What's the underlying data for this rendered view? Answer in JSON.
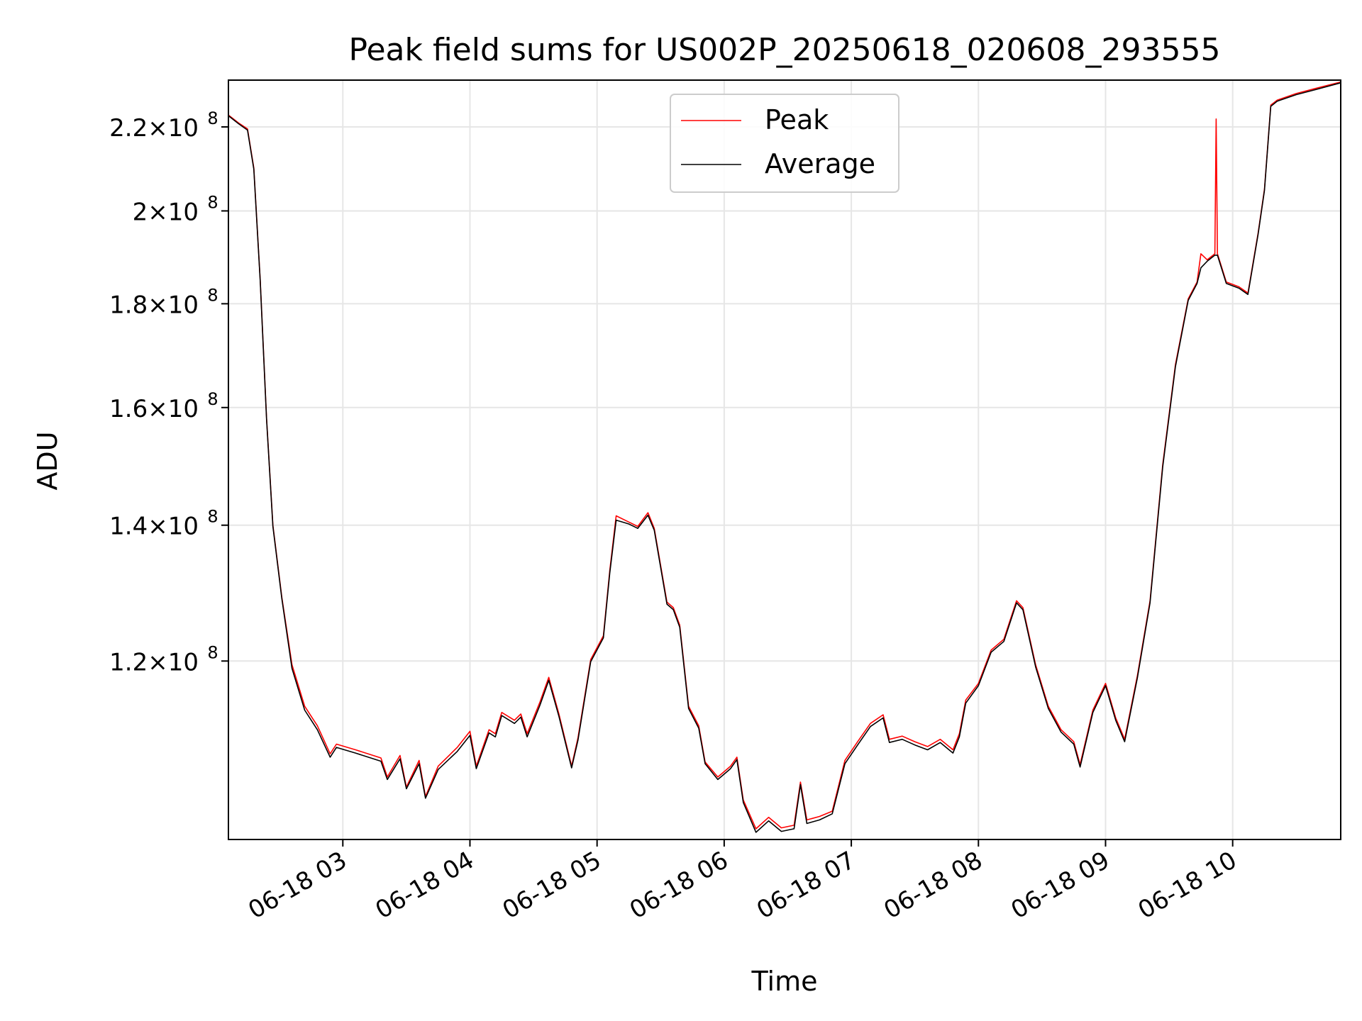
{
  "chart_data": {
    "type": "line",
    "title": "Peak field sums for US002P_20250618_020608_293555",
    "xlabel": "Time",
    "ylabel": "ADU",
    "y_scale": "log",
    "grid": true,
    "legend_placement": "upper-center",
    "x_ticks": [
      {
        "label": "06-18 03",
        "hour": 3
      },
      {
        "label": "06-18 04",
        "hour": 4
      },
      {
        "label": "06-18 05",
        "hour": 5
      },
      {
        "label": "06-18 06",
        "hour": 6
      },
      {
        "label": "06-18 07",
        "hour": 7
      },
      {
        "label": "06-18 08",
        "hour": 8
      },
      {
        "label": "06-18 09",
        "hour": 9
      },
      {
        "label": "06-18 10",
        "hour": 10
      }
    ],
    "x_range_hours": [
      2.1,
      10.85
    ],
    "y_ticks": [
      {
        "value": 120000000,
        "mantissa": "1.2",
        "base": "10",
        "exp": "8"
      },
      {
        "value": 140000000,
        "mantissa": "1.4",
        "base": "10",
        "exp": "8"
      },
      {
        "value": 160000000,
        "mantissa": "1.6",
        "base": "10",
        "exp": "8"
      },
      {
        "value": 180000000,
        "mantissa": "1.8",
        "base": "10",
        "exp": "8"
      },
      {
        "value": 200000000,
        "mantissa": "2",
        "base": "10",
        "exp": "8"
      },
      {
        "value": 220000000,
        "mantissa": "2.2",
        "base": "10",
        "exp": "8"
      }
    ],
    "times_symbol": "×",
    "ylim": [
      98000000,
      232000000
    ],
    "series": [
      {
        "name": "Peak",
        "color": "#ff0000",
        "points": [
          [
            2.1,
            223000000
          ],
          [
            2.18,
            221000000
          ],
          [
            2.25,
            219500000
          ],
          [
            2.3,
            210000000
          ],
          [
            2.35,
            185000000
          ],
          [
            2.4,
            158000000
          ],
          [
            2.45,
            140000000
          ],
          [
            2.52,
            129000000
          ],
          [
            2.6,
            119500000
          ],
          [
            2.7,
            114000000
          ],
          [
            2.8,
            111500000
          ],
          [
            2.9,
            108000000
          ],
          [
            2.95,
            109200000
          ],
          [
            3.1,
            108500000
          ],
          [
            3.3,
            107500000
          ],
          [
            3.35,
            105200000
          ],
          [
            3.45,
            107800000
          ],
          [
            3.5,
            104000000
          ],
          [
            3.6,
            107200000
          ],
          [
            3.65,
            102900000
          ],
          [
            3.75,
            106500000
          ],
          [
            3.9,
            108800000
          ],
          [
            4.0,
            110800000
          ],
          [
            4.05,
            106500000
          ],
          [
            4.15,
            111000000
          ],
          [
            4.2,
            110500000
          ],
          [
            4.25,
            113200000
          ],
          [
            4.35,
            112200000
          ],
          [
            4.4,
            113000000
          ],
          [
            4.45,
            110500000
          ],
          [
            4.55,
            114500000
          ],
          [
            4.62,
            117800000
          ],
          [
            4.7,
            113000000
          ],
          [
            4.8,
            106500000
          ],
          [
            4.85,
            110000000
          ],
          [
            4.95,
            120200000
          ],
          [
            5.05,
            123500000
          ],
          [
            5.1,
            133000000
          ],
          [
            5.15,
            141500000
          ],
          [
            5.25,
            140500000
          ],
          [
            5.32,
            139800000
          ],
          [
            5.4,
            142000000
          ],
          [
            5.45,
            139500000
          ],
          [
            5.55,
            128300000
          ],
          [
            5.6,
            127500000
          ],
          [
            5.65,
            125000000
          ],
          [
            5.72,
            114000000
          ],
          [
            5.8,
            111500000
          ],
          [
            5.85,
            107000000
          ],
          [
            5.95,
            105200000
          ],
          [
            6.05,
            106500000
          ],
          [
            6.1,
            107600000
          ],
          [
            6.15,
            102500000
          ],
          [
            6.25,
            99200000
          ],
          [
            6.35,
            100500000
          ],
          [
            6.45,
            99300000
          ],
          [
            6.55,
            99600000
          ],
          [
            6.6,
            104600000
          ],
          [
            6.65,
            100200000
          ],
          [
            6.75,
            100600000
          ],
          [
            6.85,
            101200000
          ],
          [
            6.95,
            107200000
          ],
          [
            7.05,
            109500000
          ],
          [
            7.15,
            111800000
          ],
          [
            7.25,
            112900000
          ],
          [
            7.3,
            109800000
          ],
          [
            7.4,
            110200000
          ],
          [
            7.5,
            109500000
          ],
          [
            7.6,
            108900000
          ],
          [
            7.7,
            109800000
          ],
          [
            7.8,
            108500000
          ],
          [
            7.85,
            110500000
          ],
          [
            7.9,
            114800000
          ],
          [
            8.0,
            117000000
          ],
          [
            8.1,
            121500000
          ],
          [
            8.2,
            123000000
          ],
          [
            8.3,
            128500000
          ],
          [
            8.35,
            127500000
          ],
          [
            8.45,
            119500000
          ],
          [
            8.55,
            114000000
          ],
          [
            8.65,
            111000000
          ],
          [
            8.75,
            109500000
          ],
          [
            8.8,
            106700000
          ],
          [
            8.9,
            113500000
          ],
          [
            9.0,
            117000000
          ],
          [
            9.08,
            112500000
          ],
          [
            9.15,
            109800000
          ],
          [
            9.25,
            118000000
          ],
          [
            9.35,
            128500000
          ],
          [
            9.45,
            150000000
          ],
          [
            9.55,
            168000000
          ],
          [
            9.65,
            181000000
          ],
          [
            9.72,
            184500000
          ],
          [
            9.75,
            190500000
          ],
          [
            9.8,
            189200000
          ],
          [
            9.86,
            190500000
          ],
          [
            9.87,
            222000000
          ],
          [
            9.88,
            190500000
          ],
          [
            9.95,
            184500000
          ],
          [
            10.05,
            183500000
          ],
          [
            10.12,
            182200000
          ],
          [
            10.2,
            195000000
          ],
          [
            10.25,
            205000000
          ],
          [
            10.3,
            225500000
          ],
          [
            10.35,
            226800000
          ],
          [
            10.5,
            228500000
          ],
          [
            10.65,
            229800000
          ],
          [
            10.85,
            231500000
          ]
        ]
      },
      {
        "name": "Average",
        "color": "#000000",
        "points": [
          [
            2.1,
            222800000
          ],
          [
            2.18,
            220800000
          ],
          [
            2.25,
            219200000
          ],
          [
            2.3,
            209700000
          ],
          [
            2.35,
            184800000
          ],
          [
            2.4,
            157800000
          ],
          [
            2.45,
            139800000
          ],
          [
            2.52,
            128800000
          ],
          [
            2.6,
            119000000
          ],
          [
            2.7,
            113500000
          ],
          [
            2.8,
            111000000
          ],
          [
            2.9,
            107600000
          ],
          [
            2.95,
            108800000
          ],
          [
            3.1,
            108100000
          ],
          [
            3.3,
            107100000
          ],
          [
            3.35,
            104900000
          ],
          [
            3.45,
            107400000
          ],
          [
            3.5,
            103800000
          ],
          [
            3.6,
            106800000
          ],
          [
            3.65,
            102700000
          ],
          [
            3.75,
            106100000
          ],
          [
            3.9,
            108300000
          ],
          [
            4.0,
            110300000
          ],
          [
            4.05,
            106200000
          ],
          [
            4.15,
            110600000
          ],
          [
            4.2,
            110100000
          ],
          [
            4.25,
            112800000
          ],
          [
            4.35,
            111800000
          ],
          [
            4.4,
            112600000
          ],
          [
            4.45,
            110100000
          ],
          [
            4.55,
            114100000
          ],
          [
            4.62,
            117400000
          ],
          [
            4.7,
            112700000
          ],
          [
            4.8,
            106300000
          ],
          [
            4.85,
            109700000
          ],
          [
            4.95,
            119900000
          ],
          [
            5.05,
            123200000
          ],
          [
            5.1,
            132600000
          ],
          [
            5.15,
            140800000
          ],
          [
            5.25,
            140200000
          ],
          [
            5.32,
            139500000
          ],
          [
            5.4,
            141600000
          ],
          [
            5.45,
            139200000
          ],
          [
            5.55,
            128000000
          ],
          [
            5.6,
            127200000
          ],
          [
            5.65,
            124700000
          ],
          [
            5.72,
            113700000
          ],
          [
            5.8,
            111200000
          ],
          [
            5.85,
            106800000
          ],
          [
            5.95,
            104900000
          ],
          [
            6.05,
            106200000
          ],
          [
            6.1,
            107300000
          ],
          [
            6.15,
            102200000
          ],
          [
            6.25,
            98800000
          ],
          [
            6.35,
            100100000
          ],
          [
            6.45,
            98900000
          ],
          [
            6.55,
            99200000
          ],
          [
            6.6,
            104300000
          ],
          [
            6.65,
            99800000
          ],
          [
            6.75,
            100200000
          ],
          [
            6.85,
            100900000
          ],
          [
            6.95,
            106800000
          ],
          [
            7.05,
            109100000
          ],
          [
            7.15,
            111400000
          ],
          [
            7.25,
            112500000
          ],
          [
            7.3,
            109400000
          ],
          [
            7.4,
            109800000
          ],
          [
            7.5,
            109100000
          ],
          [
            7.6,
            108500000
          ],
          [
            7.7,
            109400000
          ],
          [
            7.8,
            108100000
          ],
          [
            7.85,
            110100000
          ],
          [
            7.9,
            114400000
          ],
          [
            8.0,
            116700000
          ],
          [
            8.1,
            121200000
          ],
          [
            8.2,
            122700000
          ],
          [
            8.3,
            128200000
          ],
          [
            8.35,
            127200000
          ],
          [
            8.45,
            119200000
          ],
          [
            8.55,
            113700000
          ],
          [
            8.65,
            110700000
          ],
          [
            8.75,
            109200000
          ],
          [
            8.8,
            106400000
          ],
          [
            8.9,
            113200000
          ],
          [
            9.0,
            116700000
          ],
          [
            9.08,
            112200000
          ],
          [
            9.15,
            109500000
          ],
          [
            9.25,
            117700000
          ],
          [
            9.35,
            128200000
          ],
          [
            9.45,
            149600000
          ],
          [
            9.55,
            167600000
          ],
          [
            9.65,
            180700000
          ],
          [
            9.72,
            184200000
          ],
          [
            9.75,
            187500000
          ],
          [
            9.8,
            188900000
          ],
          [
            9.86,
            190200000
          ],
          [
            9.87,
            190200000
          ],
          [
            9.88,
            190200000
          ],
          [
            9.95,
            184200000
          ],
          [
            10.05,
            183200000
          ],
          [
            10.12,
            181900000
          ],
          [
            10.2,
            194700000
          ],
          [
            10.25,
            204700000
          ],
          [
            10.3,
            225200000
          ],
          [
            10.35,
            226500000
          ],
          [
            10.5,
            228200000
          ],
          [
            10.65,
            229500000
          ],
          [
            10.85,
            231300000
          ]
        ]
      }
    ]
  }
}
